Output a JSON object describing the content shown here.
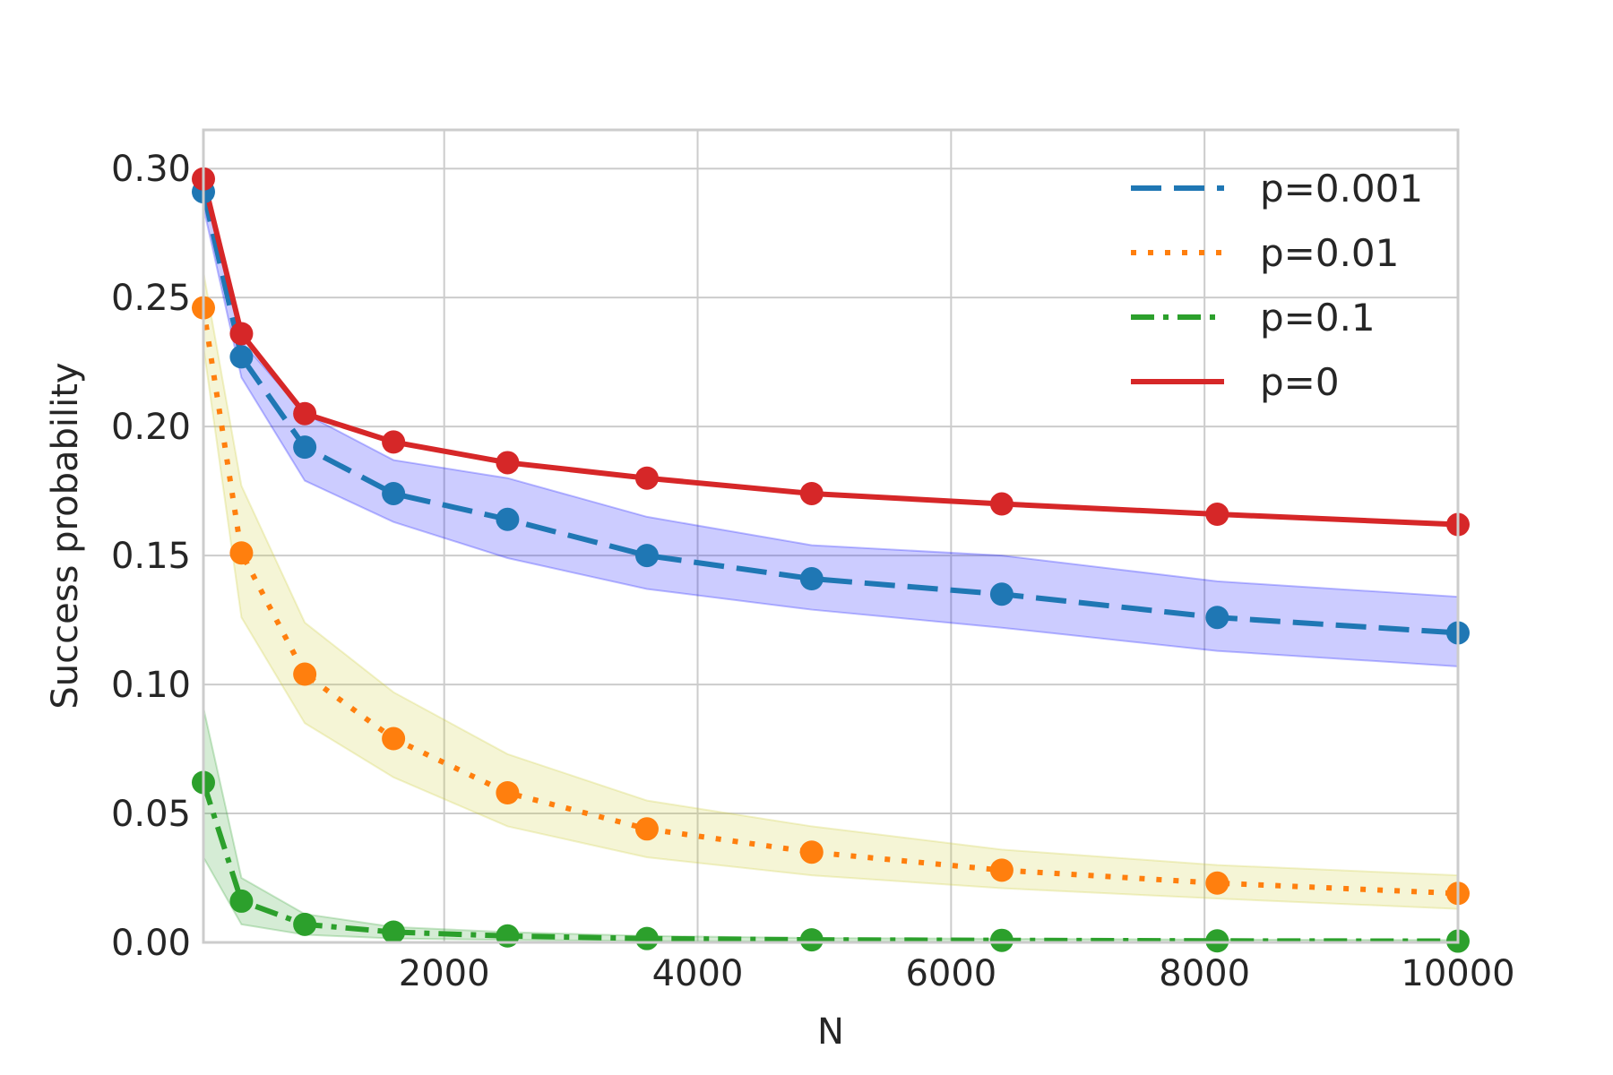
{
  "chart_data": {
    "type": "line",
    "title": "",
    "xlabel": "N",
    "ylabel": "Success probability",
    "xlim": [
      100,
      10000
    ],
    "ylim": [
      0.0,
      0.315
    ],
    "grid": true,
    "legend_position": "top-right",
    "x": [
      100,
      400,
      900,
      1600,
      2500,
      3600,
      4900,
      6400,
      8100,
      10000
    ],
    "x_ticks": [
      {
        "value": 2000,
        "label": "2000"
      },
      {
        "value": 4000,
        "label": "4000"
      },
      {
        "value": 6000,
        "label": "6000"
      },
      {
        "value": 8000,
        "label": "8000"
      },
      {
        "value": 10000,
        "label": "10000"
      }
    ],
    "y_ticks": [
      {
        "value": 0.0,
        "label": "0.00"
      },
      {
        "value": 0.05,
        "label": "0.05"
      },
      {
        "value": 0.1,
        "label": "0.10"
      },
      {
        "value": 0.15,
        "label": "0.15"
      },
      {
        "value": 0.2,
        "label": "0.20"
      },
      {
        "value": 0.25,
        "label": "0.25"
      },
      {
        "value": 0.3,
        "label": "0.30"
      }
    ],
    "series": [
      {
        "name": "p=0.001",
        "color": "#1f77b4",
        "band_color": "#0000ff",
        "style": "dashed",
        "values": [
          0.291,
          0.227,
          0.192,
          0.174,
          0.164,
          0.15,
          0.141,
          0.135,
          0.126,
          0.12
        ],
        "lower": [
          0.285,
          0.219,
          0.179,
          0.163,
          0.149,
          0.137,
          0.129,
          0.122,
          0.113,
          0.107
        ],
        "upper": [
          0.296,
          0.233,
          0.205,
          0.187,
          0.18,
          0.165,
          0.154,
          0.15,
          0.14,
          0.134
        ]
      },
      {
        "name": "p=0.01",
        "color": "#ff7f0e",
        "band_color": "#cccc33",
        "style": "dotted",
        "values": [
          0.246,
          0.151,
          0.104,
          0.079,
          0.058,
          0.044,
          0.035,
          0.028,
          0.023,
          0.019
        ],
        "lower": [
          0.231,
          0.126,
          0.085,
          0.064,
          0.045,
          0.033,
          0.026,
          0.021,
          0.017,
          0.013
        ],
        "upper": [
          0.26,
          0.177,
          0.124,
          0.097,
          0.073,
          0.055,
          0.045,
          0.036,
          0.03,
          0.026
        ]
      },
      {
        "name": "p=0.1",
        "color": "#2ca02c",
        "band_color": "#2ca02c",
        "style": "dashdot",
        "values": [
          0.062,
          0.016,
          0.007,
          0.004,
          0.0025,
          0.0015,
          0.001,
          0.0008,
          0.0006,
          0.0005
        ],
        "lower": [
          0.033,
          0.007,
          0.003,
          0.0015,
          0.001,
          0.0005,
          0.0003,
          0.0002,
          0.0001,
          0.0001
        ],
        "upper": [
          0.091,
          0.025,
          0.011,
          0.006,
          0.004,
          0.0025,
          0.0017,
          0.0014,
          0.0011,
          0.0009
        ]
      },
      {
        "name": "p=0",
        "color": "#d62728",
        "style": "solid",
        "values": [
          0.296,
          0.236,
          0.205,
          0.194,
          0.186,
          0.18,
          0.174,
          0.17,
          0.166,
          0.162
        ]
      }
    ]
  }
}
